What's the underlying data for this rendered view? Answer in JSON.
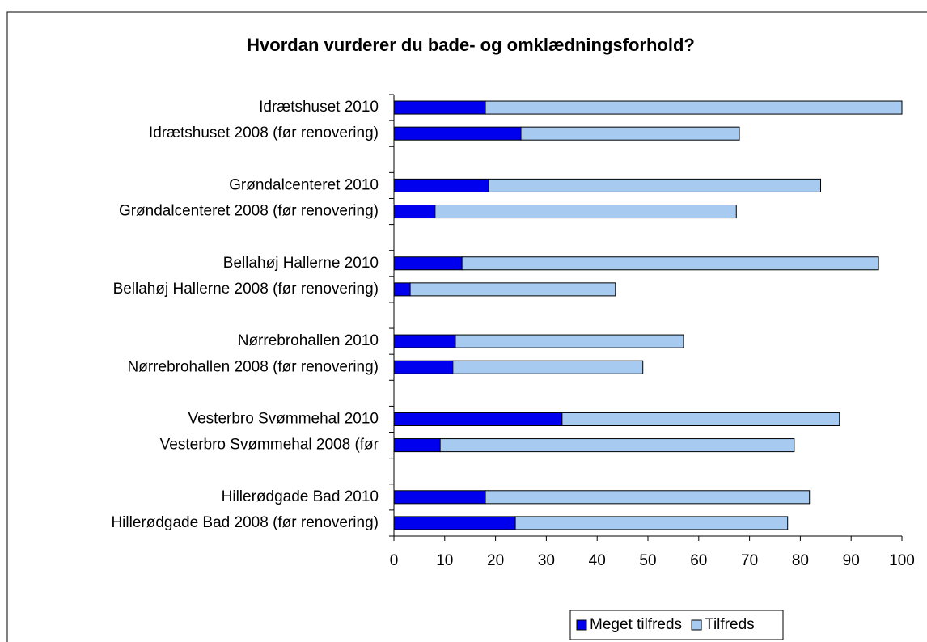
{
  "chart_data": {
    "type": "stacked-barh",
    "title": "Hvordan vurderer du bade- og omklædningsforhold?",
    "categories": [
      "Idrætshuset 2010",
      "Idrætshuset 2008 (før renovering)",
      null,
      "Grøndalcenteret 2010",
      "Grøndalcenteret 2008 (før renovering)",
      null,
      "Bellahøj Hallerne 2010",
      "Bellahøj Hallerne 2008 (før renovering)",
      null,
      "Nørrebrohallen 2010",
      "Nørrebrohallen 2008 (før renovering)",
      null,
      "Vesterbro Svømmehal 2010",
      "Vesterbro Svømmehal 2008 (før",
      null,
      "Hillerødgade Bad 2010",
      "Hillerødgade Bad 2008 (før renovering)"
    ],
    "series": [
      {
        "name": "Meget tilfreds",
        "color": "#0000ee",
        "values": [
          18,
          25,
          null,
          18.6,
          8.1,
          null,
          13.4,
          3.2,
          null,
          12.1,
          11.6,
          null,
          33.1,
          9.1,
          null,
          18,
          23.9
        ]
      },
      {
        "name": "Tilfreds",
        "color": "#a6caf0",
        "values": [
          82,
          43,
          null,
          65.4,
          59.3,
          null,
          82,
          40.4,
          null,
          44.9,
          37.4,
          null,
          54.6,
          69.7,
          null,
          63.8,
          53.6
        ]
      }
    ],
    "xlim": [
      0,
      100
    ],
    "xticks": [
      0,
      10,
      20,
      30,
      40,
      50,
      60,
      70,
      80,
      90,
      100
    ],
    "grid": false,
    "legend": "bottom"
  }
}
